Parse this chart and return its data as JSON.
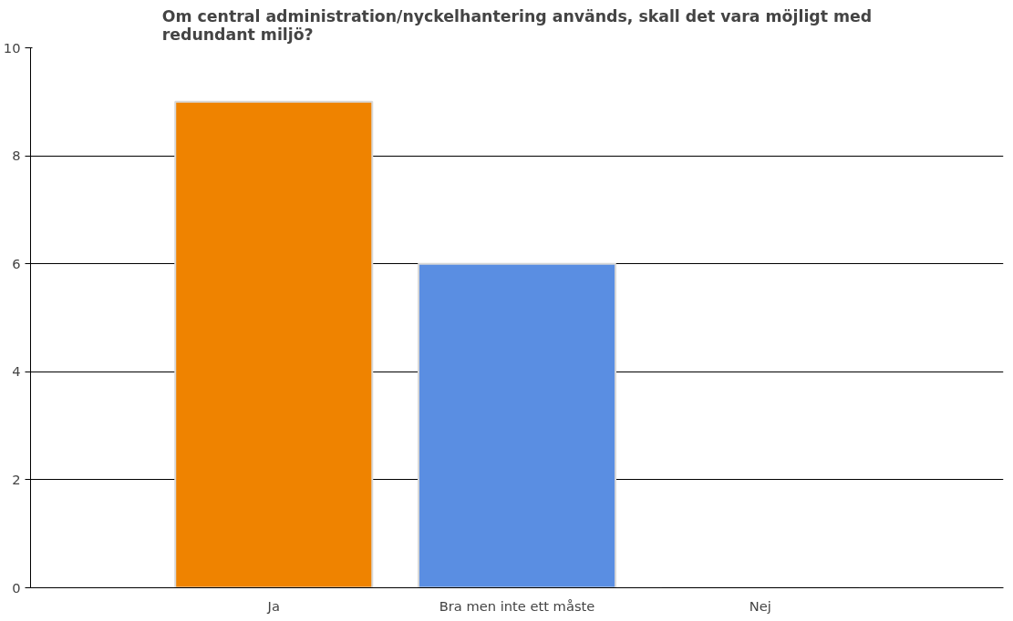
{
  "chart_data": {
    "type": "bar",
    "title": "Om central administration/nyckelhantering används, skall det vara möjligt med redundant miljö?",
    "categories": [
      "Ja",
      "Bra men inte ett måste",
      "Nej"
    ],
    "values": [
      9,
      6,
      0
    ],
    "colors": [
      "#ef8300",
      "#5a8ee2",
      "#5a8ee2"
    ],
    "ylim": [
      0,
      10
    ],
    "yticks": [
      0,
      2,
      4,
      6,
      8,
      10
    ],
    "grid": "y"
  }
}
